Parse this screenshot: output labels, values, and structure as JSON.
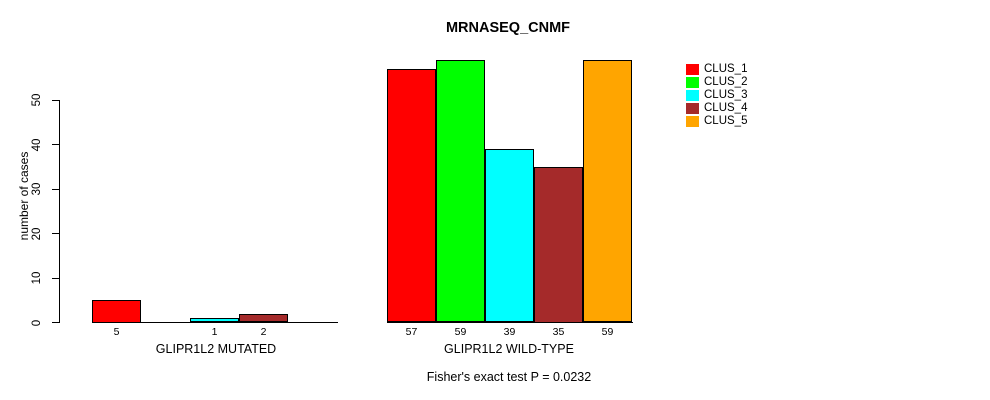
{
  "chart_data": {
    "type": "bar",
    "title": "MRNASEQ_CNMF",
    "ylabel": "number of cases",
    "ylim": [
      0,
      50
    ],
    "yticks": [
      0,
      10,
      20,
      30,
      40,
      50
    ],
    "grid": false,
    "legend_position": "right",
    "series_names": [
      "CLUS_1",
      "CLUS_2",
      "CLUS_3",
      "CLUS_4",
      "CLUS_5"
    ],
    "legend": [
      {
        "label": "CLUS_1",
        "color": "#FF0000"
      },
      {
        "label": "CLUS_2",
        "color": "#00FF00"
      },
      {
        "label": "CLUS_3",
        "color": "#00FFFF"
      },
      {
        "label": "CLUS_4",
        "color": "#A52A2A"
      },
      {
        "label": "CLUS_5",
        "color": "#FFA500"
      }
    ],
    "groups": [
      {
        "label": "GLIPR1L2 MUTATED",
        "values": [
          5,
          0,
          1,
          2,
          0
        ]
      },
      {
        "label": "GLIPR1L2 WILD-TYPE",
        "values": [
          57,
          59,
          39,
          35,
          59
        ]
      }
    ],
    "zero_bars_hidden": true,
    "annotation": "Fisher's exact test P = 0.0232"
  }
}
